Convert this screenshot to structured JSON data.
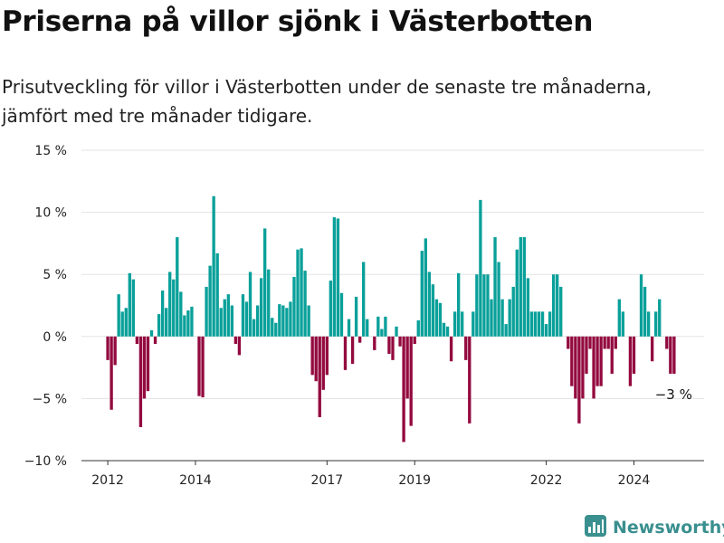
{
  "title": "Priserna på villor sjönk i Västerbotten",
  "subtitle": "Prisutveckling för villor i Västerbotten under de senaste tre månaderna, jämfört med tre månader tidigare.",
  "brand": {
    "name": "Newsworthy",
    "icon": "newsworthy-logo-icon"
  },
  "colors": {
    "positive": "#0aa09a",
    "negative": "#930a3f",
    "grid": "#e3e3e3",
    "axis": "#333333"
  },
  "chart_data": {
    "type": "bar",
    "title": "Priserna på villor sjönk i Västerbotten",
    "ylabel": "",
    "ylim": [
      -10,
      15
    ],
    "y_ticks": [
      {
        "value": 15,
        "label": "15 %"
      },
      {
        "value": 10,
        "label": "10 %"
      },
      {
        "value": 5,
        "label": "5 %"
      },
      {
        "value": 0,
        "label": "0 %"
      },
      {
        "value": -5,
        "label": "−5 %"
      },
      {
        "value": -10,
        "label": "−10 %"
      }
    ],
    "x_ticks": [
      {
        "value": 2012.0,
        "label": "2012"
      },
      {
        "value": 2014.0,
        "label": "2014"
      },
      {
        "value": 2017.0,
        "label": "2017"
      },
      {
        "value": 2019.0,
        "label": "2019"
      },
      {
        "value": 2022.0,
        "label": "2022"
      },
      {
        "value": 2024.0,
        "label": "2024"
      }
    ],
    "xlim": [
      2011.4,
      2025.6
    ],
    "x_start": 2012.0,
    "x_step": 0.08333,
    "grid": true,
    "annotation": {
      "label": "−3 %",
      "value": -3
    },
    "values": [
      -1.9,
      -5.9,
      -2.3,
      3.4,
      2.0,
      2.3,
      5.1,
      4.6,
      -0.6,
      -7.3,
      -5.0,
      -4.4,
      0.5,
      -0.6,
      1.8,
      3.7,
      2.3,
      5.2,
      4.6,
      8.0,
      3.6,
      1.7,
      2.1,
      2.4,
      0,
      -4.8,
      -4.9,
      4.0,
      5.7,
      11.3,
      6.7,
      2.3,
      3.0,
      3.4,
      2.5,
      -0.6,
      -1.5,
      3.4,
      2.8,
      5.2,
      1.4,
      2.5,
      4.7,
      8.7,
      5.4,
      1.5,
      1.1,
      2.6,
      2.5,
      2.3,
      2.8,
      4.8,
      7.0,
      7.1,
      5.3,
      2.5,
      -3.1,
      -3.6,
      -6.5,
      -4.3,
      -3.1,
      4.5,
      9.6,
      9.5,
      3.5,
      -2.7,
      1.4,
      -2.2,
      3.2,
      -0.5,
      6.0,
      1.4,
      0,
      -1.1,
      1.6,
      0.6,
      1.6,
      -1.4,
      -1.9,
      0.8,
      -0.8,
      -8.5,
      -5.0,
      -7.2,
      -0.6,
      1.3,
      6.9,
      7.9,
      5.2,
      4.2,
      3.0,
      2.7,
      1.1,
      0.8,
      -2.0,
      2.0,
      5.1,
      2.0,
      -1.9,
      -7.0,
      2.0,
      5.0,
      11.0,
      5.0,
      5.0,
      3.0,
      8.0,
      6.0,
      3.0,
      1.0,
      3.0,
      4.0,
      7.0,
      8.0,
      8.0,
      4.7,
      2.0,
      2.0,
      2.0,
      2.0,
      1.0,
      2.0,
      5.0,
      5.0,
      4.0,
      0,
      -1.0,
      -4.0,
      -5.0,
      -7.0,
      -5.0,
      -3.0,
      -1.0,
      -5.0,
      -4.0,
      -4.0,
      -1.0,
      -1.0,
      -3.0,
      -1.0,
      3.0,
      2.0,
      0,
      -4.0,
      -3.0,
      0,
      5.0,
      4.0,
      2.0,
      -2.0,
      2.0,
      3.0,
      0,
      -1.0,
      -3.0,
      -3.0
    ]
  }
}
